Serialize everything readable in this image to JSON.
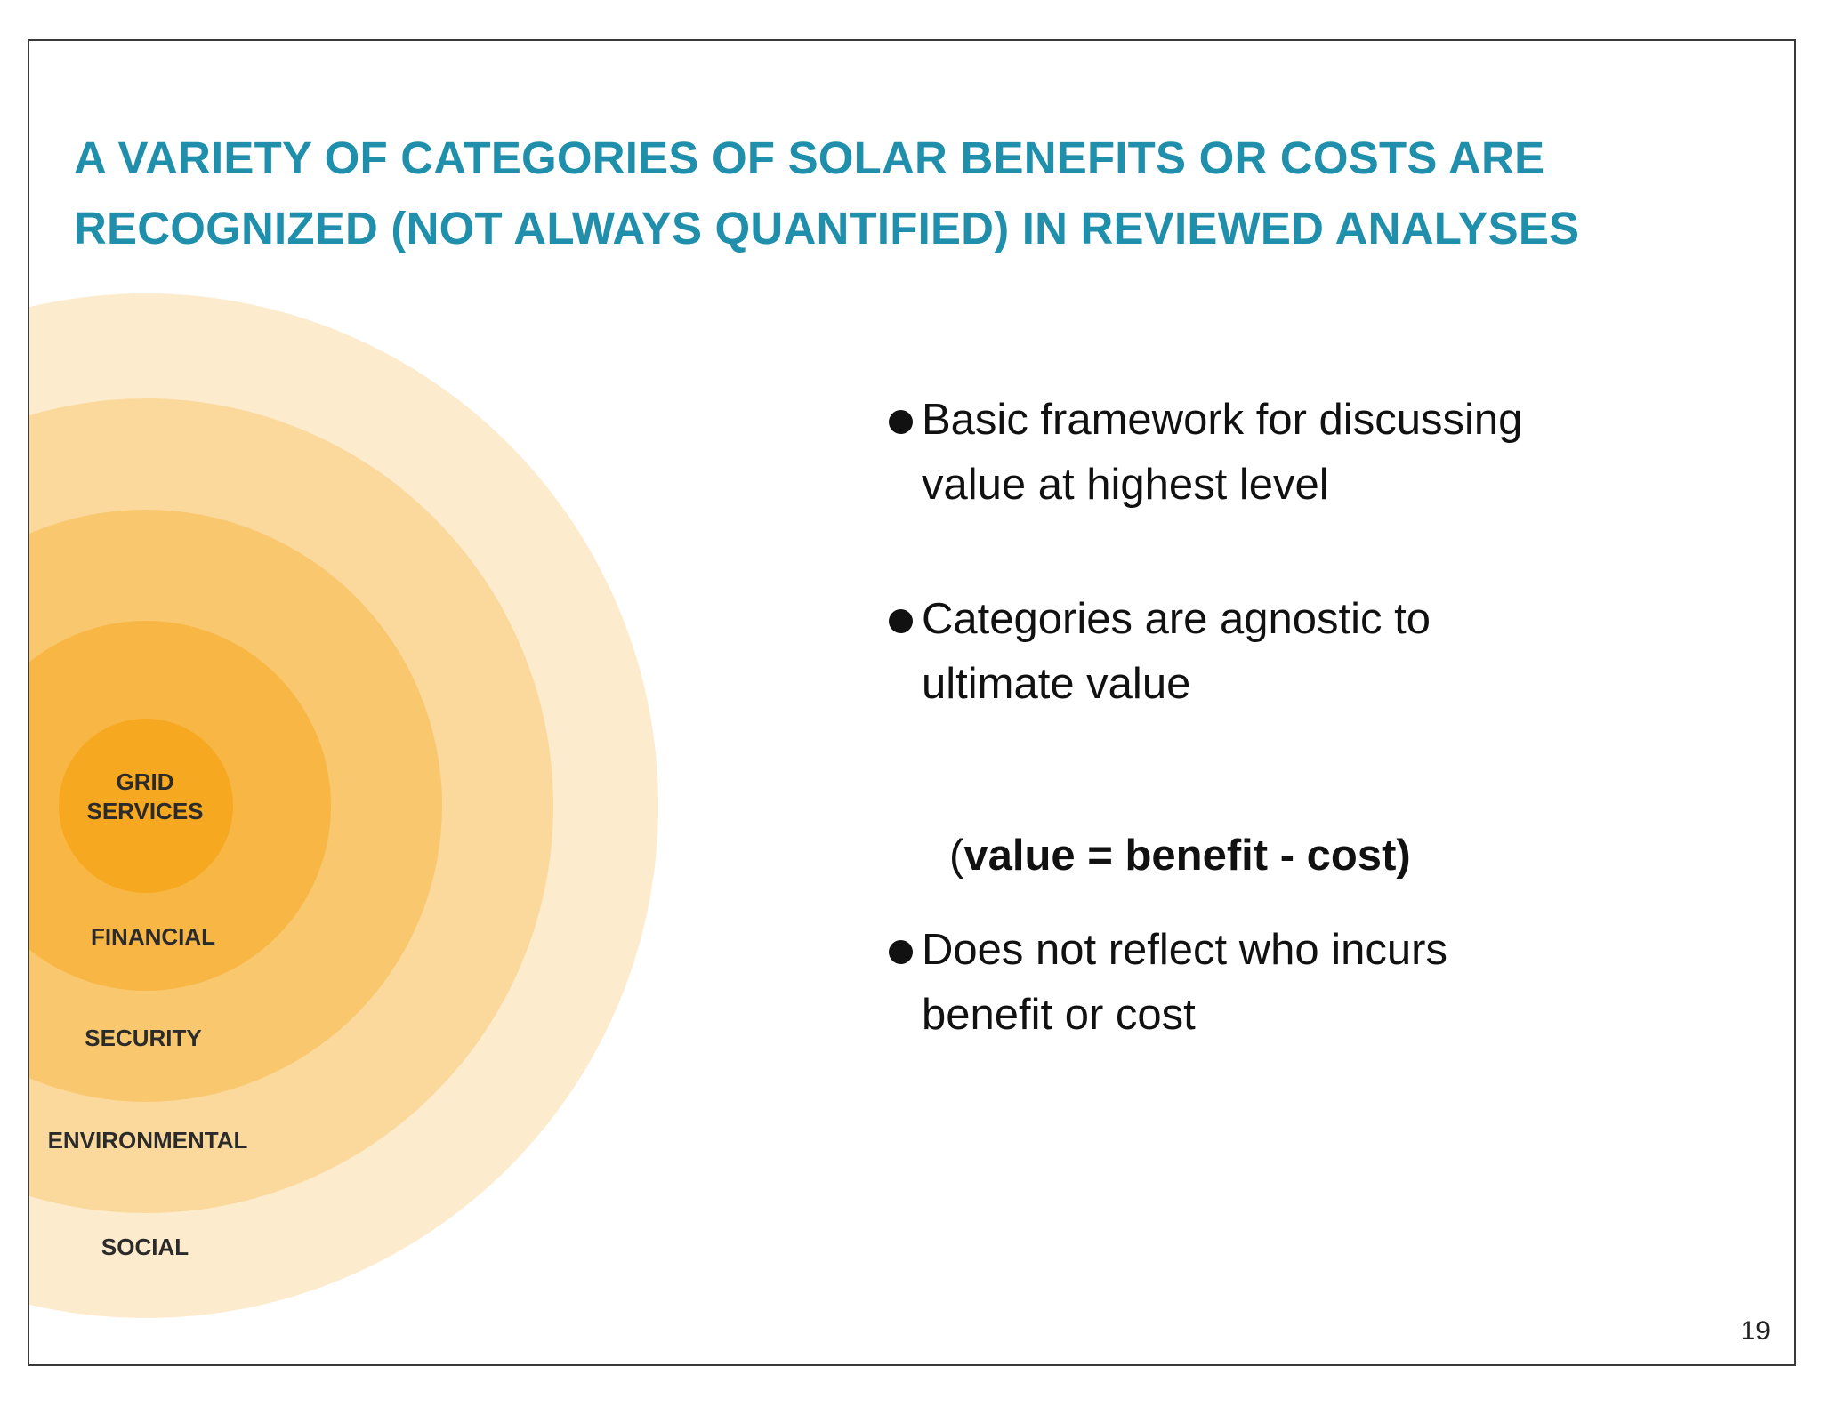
{
  "slide": {
    "title_lines": [
      "A VARIETY OF CATEGORIES OF SOLAR BENEFITS OR COSTS ARE",
      "RECOGNIZED (NOT ALWAYS QUANTIFIED) IN REVIEWED ANALYSES"
    ],
    "page_number": "19"
  },
  "diagram": {
    "rings": [
      {
        "name": "SOCIAL",
        "color": "#fdebcd"
      },
      {
        "name": "ENVIRONMENTAL",
        "color": "#fbd99c"
      },
      {
        "name": "SECURITY",
        "color": "#f9c76e"
      },
      {
        "name": "FINANCIAL",
        "color": "#f8b745"
      },
      {
        "name": "GRID SERVICES",
        "lines": [
          "GRID",
          "SERVICES"
        ],
        "color": "#f6a820"
      }
    ]
  },
  "bullets": [
    {
      "lines": [
        "Basic framework for discussing",
        "value at highest level"
      ]
    },
    {
      "lines": [
        "Categories are agnostic to",
        "ultimate value"
      ]
    },
    {
      "lines": [
        "Does not reflect who incurs",
        "benefit or cost"
      ]
    }
  ],
  "formula": {
    "open": "(",
    "body": "value = benefit - cost)"
  },
  "colors": {
    "title": "#1f8fac",
    "text": "#111111"
  }
}
